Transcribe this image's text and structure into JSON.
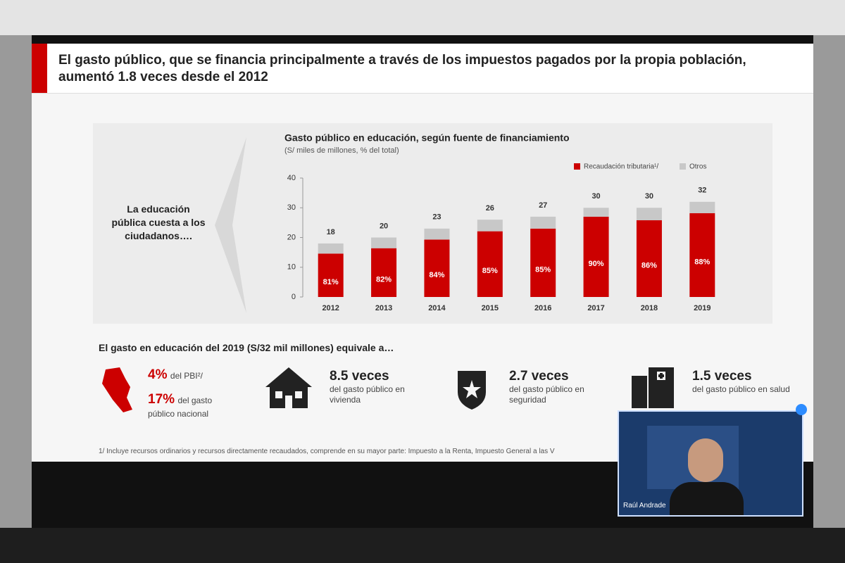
{
  "slide": {
    "title": "El gasto público, que se financia principalmente a través de los impuestos pagados por la propia población, aumentó 1.8 veces desde el 2012",
    "side_text": "La educación pública cuesta a los ciudadanos….",
    "equivalence_heading": "El gasto en educación del 2019 (S/32 mil millones) equivale a…",
    "items": [
      {
        "big": "4%",
        "text": "del PBI²/",
        "big2": "17%",
        "text2": "del gasto público nacional"
      },
      {
        "big": "8.5 veces",
        "text": "del gasto público en vivienda"
      },
      {
        "big": "2.7 veces",
        "text": "del gasto público en seguridad"
      },
      {
        "big": "1.5 veces",
        "text": "del gasto público en salud"
      }
    ],
    "footnote": "1/ Incluye recursos ordinarios y recursos directamente recaudados, comprende en su mayor parte: Impuesto a la Renta, Impuesto General a las V"
  },
  "video": {
    "name": "Raúl Andrade"
  },
  "chart_data": {
    "type": "stacked-bar",
    "title": "Gasto público en educación, según fuente de financiamiento",
    "subtitle": "(S/ miles de millones, % del total)",
    "categories": [
      "2012",
      "2013",
      "2014",
      "2015",
      "2016",
      "2017",
      "2018",
      "2019"
    ],
    "series": [
      {
        "name": "Recaudación tributaria¹/",
        "color": "#cc0000",
        "values": [
          14.6,
          16.4,
          19.3,
          22.1,
          23,
          27,
          25.8,
          28.2
        ]
      },
      {
        "name": "Otros",
        "color": "#c8c8c8",
        "values": [
          3.4,
          3.6,
          3.7,
          3.9,
          4,
          3,
          4.2,
          3.8
        ]
      }
    ],
    "percent_labels": [
      "81%",
      "82%",
      "84%",
      "85%",
      "85%",
      "90%",
      "86%",
      "88%"
    ],
    "totals": [
      18,
      20,
      23,
      26,
      27,
      30,
      30,
      32
    ],
    "ylim": [
      0,
      40
    ],
    "yticks": [
      0,
      10,
      20,
      30,
      40
    ],
    "grid": false
  }
}
